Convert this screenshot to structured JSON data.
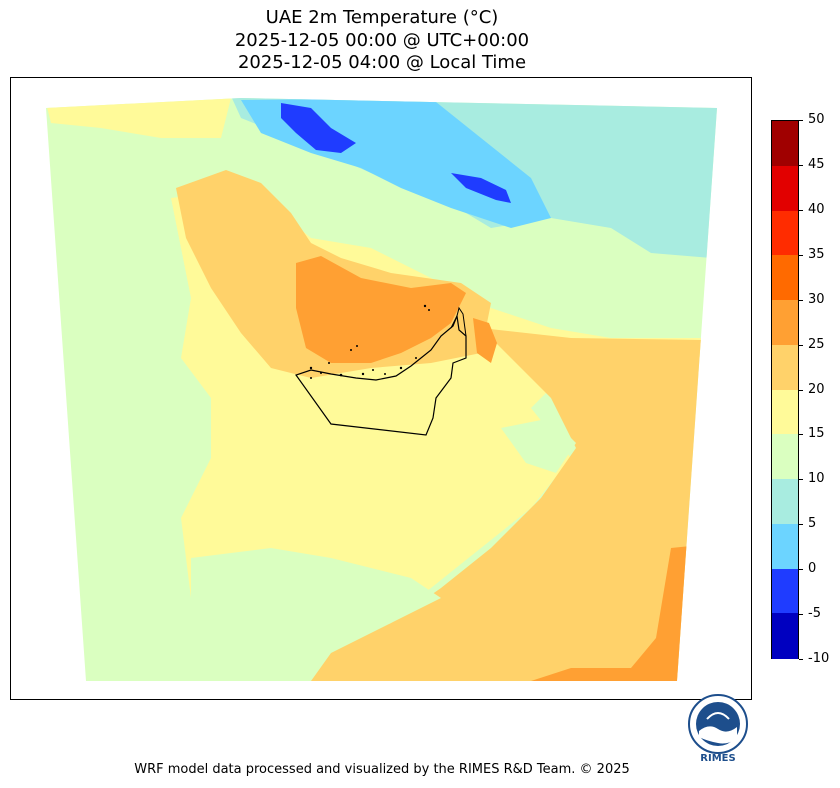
{
  "title": {
    "line1": "UAE 2m Temperature (°C)",
    "line2": "2025-12-05 00:00 @ UTC+00:00",
    "line3": "2025-12-05 04:00 @ Local Time"
  },
  "colorbar": {
    "ticks": [
      "50",
      "45",
      "40",
      "35",
      "30",
      "25",
      "20",
      "15",
      "10",
      "5",
      "0",
      "-5",
      "-10"
    ],
    "colors": [
      "#a00000",
      "#e20000",
      "#ff2c00",
      "#ff6a00",
      "#ffa033",
      "#ffd26a",
      "#fffa99",
      "#daffc0",
      "#a8ece0",
      "#6cd4ff",
      "#1f3cff",
      "#0000c0"
    ]
  },
  "palette": {
    "cold_dark": "#1f3cff",
    "cool": "#6cd4ff",
    "mild": "#a8ece0",
    "pale_green": "#daffc0",
    "yellow": "#fffa99",
    "warm": "#ffd26a",
    "orange": "#ffa033",
    "border_line": "#000000"
  },
  "logo": {
    "text": "RIMES"
  },
  "footer": "WRF model data processed and visualized by the RIMES R&D Team. © 2025"
}
